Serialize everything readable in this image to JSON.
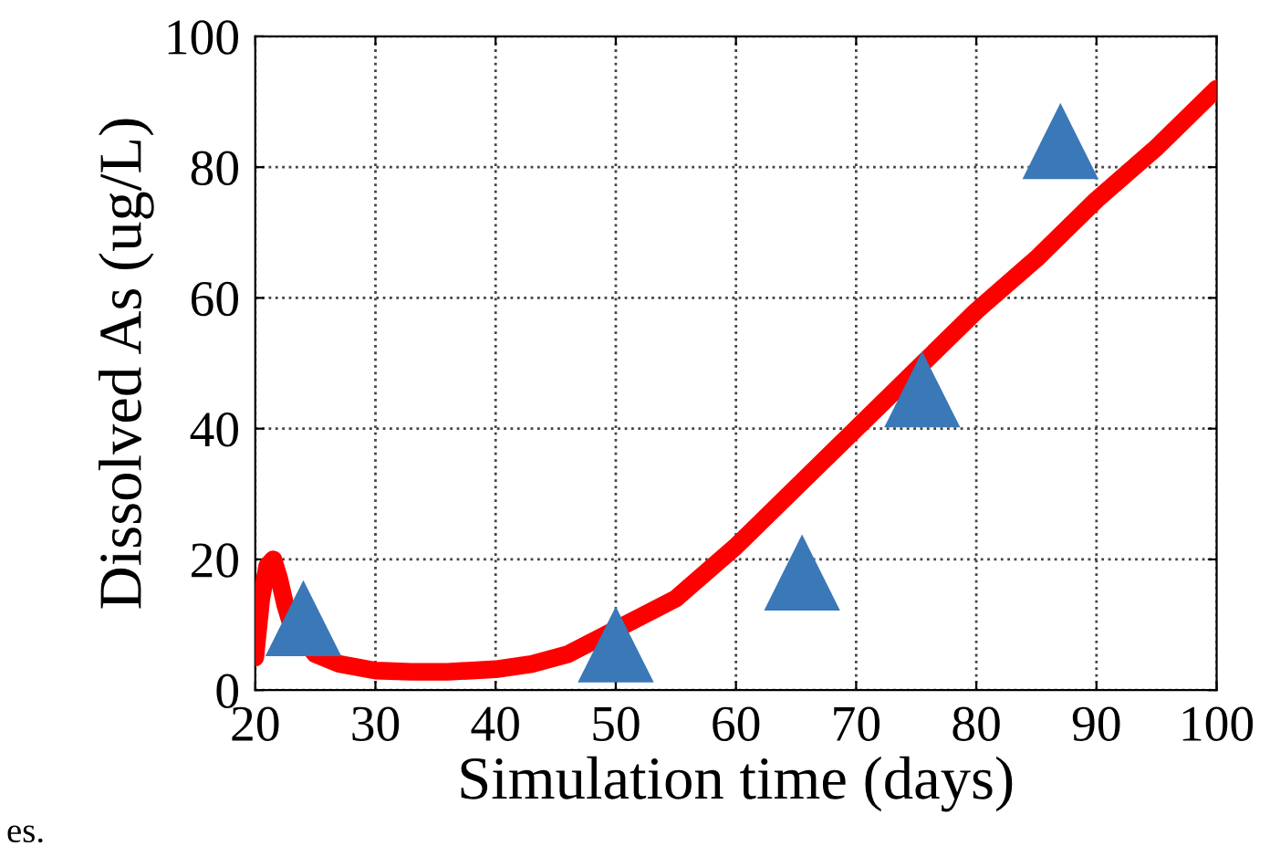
{
  "chart_data": {
    "type": "line",
    "xlabel": "Simulation time (days)",
    "ylabel": "Dissolved As (ug/L)",
    "xlim": [
      20,
      100
    ],
    "ylim": [
      0,
      100
    ],
    "xticks": [
      20,
      30,
      40,
      50,
      60,
      70,
      80,
      90,
      100
    ],
    "yticks": [
      0,
      20,
      40,
      60,
      80,
      100
    ],
    "grid": true,
    "annotations": [
      "es."
    ],
    "series": [
      {
        "color": "#ff0000",
        "line_style": "solid",
        "marker": "none",
        "x": [
          20,
          20.5,
          21,
          21.5,
          22,
          22.5,
          23,
          25,
          27,
          30,
          33,
          36,
          40,
          43,
          46,
          55,
          60,
          65,
          70,
          75,
          80,
          85,
          90,
          95,
          100
        ],
        "values": [
          5,
          14,
          19,
          20,
          17,
          13,
          10,
          5.5,
          4,
          3,
          2.8,
          2.8,
          3.2,
          4,
          5.5,
          14,
          22,
          31,
          40,
          49,
          58,
          66,
          75,
          83,
          92
        ]
      },
      {
        "type": "scatter",
        "color": "#3a78b8",
        "marker": "triangle",
        "x": [
          24,
          50,
          65.5,
          75.5,
          87
        ],
        "values": [
          11,
          7,
          18,
          46,
          84
        ]
      }
    ]
  }
}
